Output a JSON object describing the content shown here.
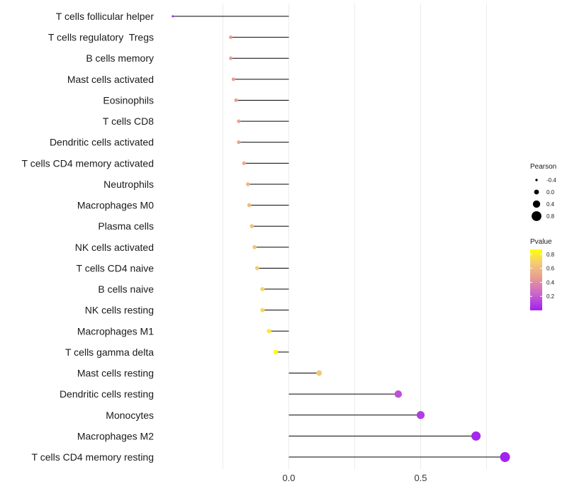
{
  "chart_data": {
    "type": "lollipop",
    "orientation": "horizontal",
    "series": [
      {
        "name": "T cells follicular helper",
        "pearson": -0.44,
        "pvalue": 0.01
      },
      {
        "name": "T cells regulatory  Tregs",
        "pearson": -0.22,
        "pvalue": 0.53
      },
      {
        "name": "B cells memory",
        "pearson": -0.22,
        "pvalue": 0.53
      },
      {
        "name": "Mast cells activated",
        "pearson": -0.21,
        "pvalue": 0.54
      },
      {
        "name": "Eosinophils",
        "pearson": -0.2,
        "pvalue": 0.56
      },
      {
        "name": "T cells CD8",
        "pearson": -0.19,
        "pvalue": 0.57
      },
      {
        "name": "Dendritic cells activated",
        "pearson": -0.19,
        "pvalue": 0.57
      },
      {
        "name": "T cells CD4 memory activated",
        "pearson": -0.17,
        "pvalue": 0.6
      },
      {
        "name": "Neutrophils",
        "pearson": -0.155,
        "pvalue": 0.64
      },
      {
        "name": "Macrophages M0",
        "pearson": -0.15,
        "pvalue": 0.65
      },
      {
        "name": "Plasma cells",
        "pearson": -0.14,
        "pvalue": 0.67
      },
      {
        "name": "NK cells activated",
        "pearson": -0.13,
        "pvalue": 0.69
      },
      {
        "name": "T cells CD4 naive",
        "pearson": -0.12,
        "pvalue": 0.71
      },
      {
        "name": "B cells naive",
        "pearson": -0.1,
        "pvalue": 0.75
      },
      {
        "name": "NK cells resting",
        "pearson": -0.1,
        "pvalue": 0.75
      },
      {
        "name": "Macrophages M1",
        "pearson": -0.075,
        "pvalue": 0.8
      },
      {
        "name": "T cells gamma delta",
        "pearson": -0.05,
        "pvalue": 0.87
      },
      {
        "name": "Mast cells resting",
        "pearson": 0.115,
        "pvalue": 0.7
      },
      {
        "name": "Dendritic cells resting",
        "pearson": 0.415,
        "pvalue": 0.18
      },
      {
        "name": "Monocytes",
        "pearson": 0.5,
        "pvalue": 0.11
      },
      {
        "name": "Macrophages M2",
        "pearson": 0.71,
        "pvalue": 0.03
      },
      {
        "name": "T cells CD4 memory resting",
        "pearson": 0.82,
        "pvalue": 0.01
      }
    ],
    "x_ticks": [
      "0.0",
      "0.5"
    ],
    "x_tick_values": [
      0.0,
      0.5
    ],
    "xlim": [
      -0.55,
      0.84
    ],
    "baseline": 0.0,
    "grid": true,
    "legend_size": {
      "title": "Pearson",
      "labels": [
        "-0.4",
        "0.0",
        "0.4",
        "0.8"
      ],
      "values": [
        -0.4,
        0.0,
        0.4,
        0.8
      ]
    },
    "legend_color": {
      "title": "Pvalue",
      "labels": [
        "0.8",
        "0.6",
        "0.4",
        "0.2"
      ],
      "values": [
        0.8,
        0.6,
        0.4,
        0.2
      ],
      "range": [
        0.0,
        0.87
      ],
      "low_color": "#a020f0",
      "high_color": "#ffff00"
    },
    "colors": {
      "segment": "#000000",
      "grid": "#ebebeb",
      "text": "#1a1a1a"
    }
  }
}
